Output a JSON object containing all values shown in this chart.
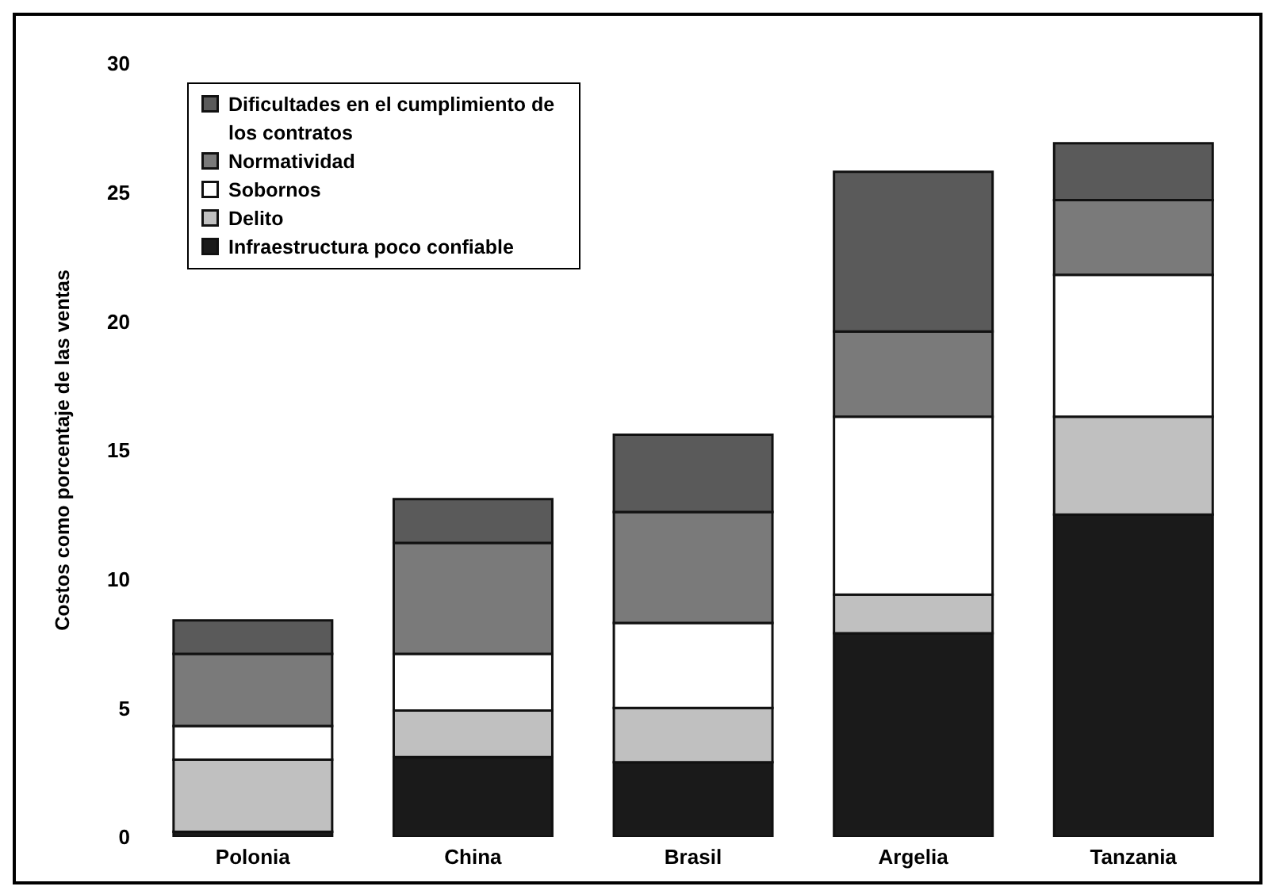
{
  "chart_data": {
    "type": "bar",
    "stacked": true,
    "ylabel": "Costos como porcentaje de las ventas",
    "categories": [
      "Polonia",
      "China",
      "Brasil",
      "Argelia",
      "Tanzania"
    ],
    "series": [
      {
        "name": "Infraestructura poco confiable",
        "color": "#1a1a1a",
        "values": [
          0.2,
          3.1,
          2.9,
          7.9,
          12.5
        ]
      },
      {
        "name": "Delito",
        "color": "#c0c0c0",
        "values": [
          2.8,
          1.8,
          2.1,
          1.5,
          3.8
        ]
      },
      {
        "name": "Sobornos",
        "color": "#ffffff",
        "values": [
          1.3,
          2.2,
          3.3,
          6.9,
          5.5
        ]
      },
      {
        "name": "Normatividad",
        "color": "#7a7a7a",
        "values": [
          2.8,
          4.3,
          4.3,
          3.3,
          2.9
        ]
      },
      {
        "name": "Dificultades en el cumplimiento de los contratos",
        "color": "#5a5a5a",
        "values": [
          1.3,
          1.7,
          3.0,
          6.2,
          2.2
        ]
      }
    ],
    "ylim": [
      0,
      30
    ],
    "yticks": [
      0,
      5,
      10,
      15,
      20,
      25,
      30
    ],
    "grid": false,
    "legend": "top left"
  }
}
